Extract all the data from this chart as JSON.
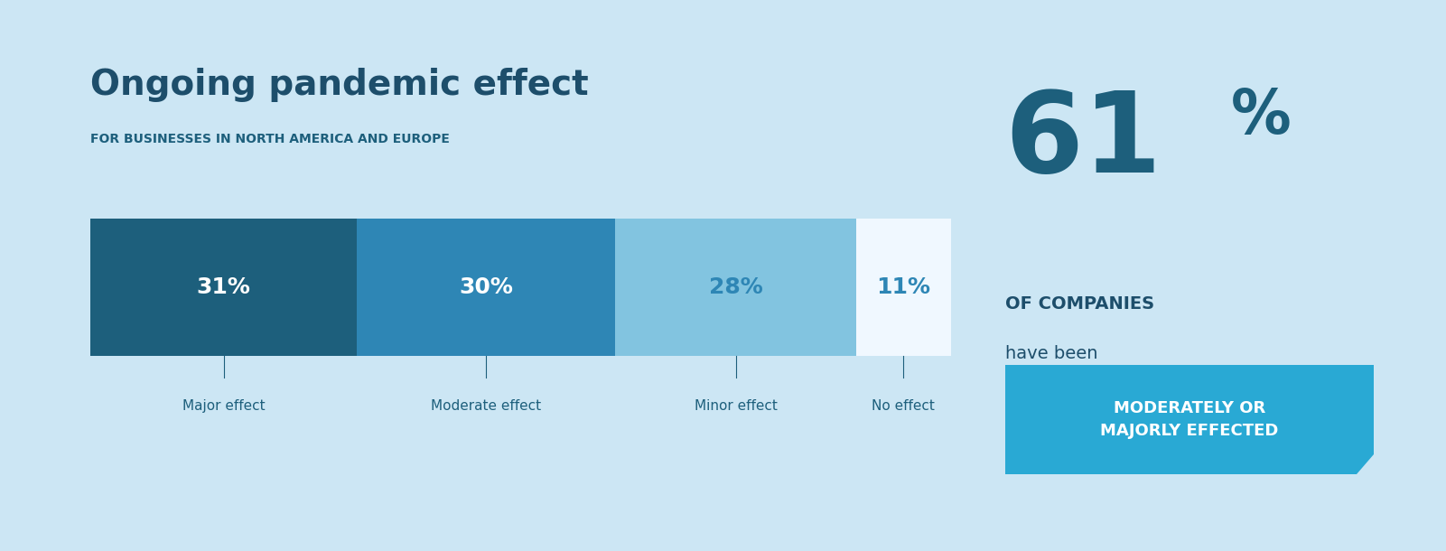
{
  "title": "Ongoing pandemic effect",
  "subtitle": "FOR BUSINESSES IN NORTH AMERICA AND EUROPE",
  "background_color": "#cce6f4",
  "bar_colors": [
    "#1d5f7c",
    "#2e86b5",
    "#82c4e0",
    "#f0f8ff"
  ],
  "bar_values": [
    31,
    30,
    28,
    11
  ],
  "bar_labels": [
    "31%",
    "30%",
    "28%",
    "11%"
  ],
  "bar_text_colors": [
    "#ffffff",
    "#ffffff",
    "#2e86b5",
    "#2e86b5"
  ],
  "categories": [
    "Major effect",
    "Moderate effect",
    "Minor effect",
    "No effect"
  ],
  "title_color": "#1d4e6b",
  "subtitle_color": "#1d5f7c",
  "category_color": "#1d5f7c",
  "stat_number": "61",
  "stat_percent": "%",
  "stat_color": "#1d5f7c",
  "stat_desc1": "OF COMPANIES",
  "stat_desc2": "have been",
  "stat_desc3": "MODERATELY OR\nMAJORLY EFFECTED",
  "stat_box_color": "#29a9d4",
  "stat_text_color": "#ffffff",
  "stat_desc1_color": "#1d4e6b",
  "stat_desc2_color": "#1d4e6b"
}
